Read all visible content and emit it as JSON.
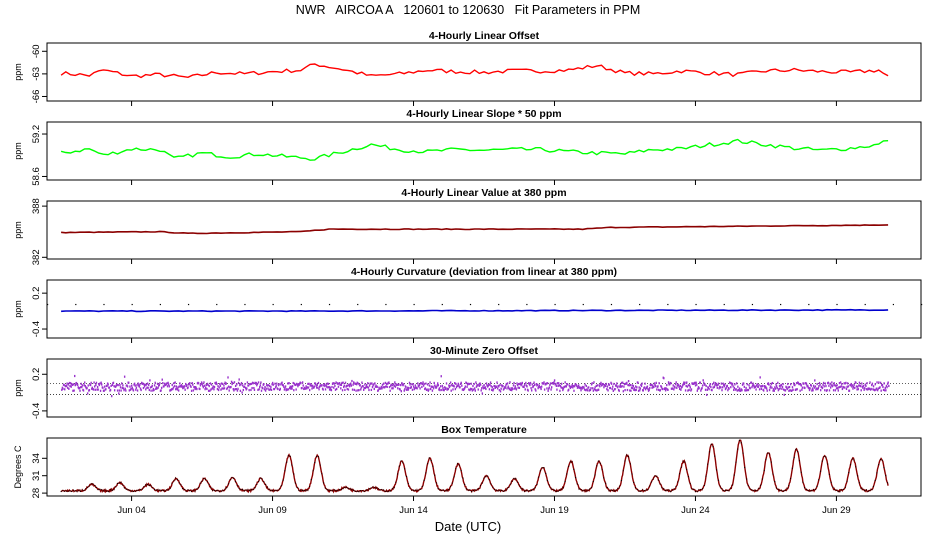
{
  "main_title": "NWR   AIRCOA A   120601 to 120630   Fit Parameters in PPM",
  "xlabel": "Date (UTC)",
  "x_axis": {
    "start": "2012-06-01",
    "end": "2012-07-02",
    "tick_dates": [
      "2012-06-04",
      "2012-06-09",
      "2012-06-14",
      "2012-06-19",
      "2012-06-24",
      "2012-06-29"
    ],
    "tick_labels": [
      "Jun 04",
      "Jun 09",
      "Jun 14",
      "Jun 19",
      "Jun 24",
      "Jun 29"
    ]
  },
  "chart_data": [
    {
      "type": "line",
      "title": "4-Hourly Linear Offset",
      "ylabel": "ppm",
      "ylim": [
        -66.6,
        -58.9
      ],
      "yticks": [
        -60,
        -63,
        -66
      ],
      "ytick_labels": [
        "-60",
        "-63",
        "-66"
      ],
      "color": "#ff0000",
      "series": [
        {
          "x_range": [
            "2012-06-01T12:00",
            "2012-06-30T20:00"
          ],
          "step_hours": 4,
          "anchors": [
            {
              "x": "2012-06-01T12:00",
              "y": -62.9
            },
            {
              "x": "2012-06-02T12:00",
              "y": -63.2
            },
            {
              "x": "2012-06-03T00:00",
              "y": -62.5
            },
            {
              "x": "2012-06-04T00:00",
              "y": -63.3
            },
            {
              "x": "2012-06-05T00:00",
              "y": -63.1
            },
            {
              "x": "2012-06-06T00:00",
              "y": -63.5
            },
            {
              "x": "2012-06-07T00:00",
              "y": -62.8
            },
            {
              "x": "2012-06-08T00:00",
              "y": -63.0
            },
            {
              "x": "2012-06-09T00:00",
              "y": -62.7
            },
            {
              "x": "2012-06-10T00:00",
              "y": -62.5
            },
            {
              "x": "2012-06-10T12:00",
              "y": -61.7
            },
            {
              "x": "2012-06-11T12:00",
              "y": -62.4
            },
            {
              "x": "2012-06-12T12:00",
              "y": -63.3
            },
            {
              "x": "2012-06-13T12:00",
              "y": -63.0
            },
            {
              "x": "2012-06-14T12:00",
              "y": -62.5
            },
            {
              "x": "2012-06-15T12:00",
              "y": -62.7
            },
            {
              "x": "2012-06-16T12:00",
              "y": -62.8
            },
            {
              "x": "2012-06-17T12:00",
              "y": -62.6
            },
            {
              "x": "2012-06-18T12:00",
              "y": -62.6
            },
            {
              "x": "2012-06-19T12:00",
              "y": -62.5
            },
            {
              "x": "2012-06-20T12:00",
              "y": -61.9
            },
            {
              "x": "2012-06-21T12:00",
              "y": -62.9
            },
            {
              "x": "2012-06-22T12:00",
              "y": -63.0
            },
            {
              "x": "2012-06-23T12:00",
              "y": -62.6
            },
            {
              "x": "2012-06-24T12:00",
              "y": -62.9
            },
            {
              "x": "2012-06-25T12:00",
              "y": -63.1
            },
            {
              "x": "2012-06-26T12:00",
              "y": -62.6
            },
            {
              "x": "2012-06-27T12:00",
              "y": -62.5
            },
            {
              "x": "2012-06-28T12:00",
              "y": -62.7
            },
            {
              "x": "2012-06-29T12:00",
              "y": -62.8
            },
            {
              "x": "2012-06-30T12:00",
              "y": -62.5
            },
            {
              "x": "2012-06-30T20:00",
              "y": -63.4
            }
          ]
        }
      ]
    },
    {
      "type": "line",
      "title": "4-Hourly Linear Slope * 50 ppm",
      "ylabel": "ppm",
      "ylim": [
        58.55,
        59.37
      ],
      "yticks": [
        59.2,
        58.6
      ],
      "ytick_labels": [
        "59.2",
        "58.6"
      ],
      "color": "#00ff00",
      "series": [
        {
          "x_range": [
            "2012-06-01T12:00",
            "2012-06-30T20:00"
          ],
          "step_hours": 4,
          "anchors": [
            {
              "x": "2012-06-01T12:00",
              "y": 58.93
            },
            {
              "x": "2012-06-02T12:00",
              "y": 58.99
            },
            {
              "x": "2012-06-03T00:00",
              "y": 58.9
            },
            {
              "x": "2012-06-04T00:00",
              "y": 58.99
            },
            {
              "x": "2012-06-05T00:00",
              "y": 58.98
            },
            {
              "x": "2012-06-05T12:00",
              "y": 58.85
            },
            {
              "x": "2012-06-06T12:00",
              "y": 58.93
            },
            {
              "x": "2012-06-07T12:00",
              "y": 58.88
            },
            {
              "x": "2012-06-08T12:00",
              "y": 58.92
            },
            {
              "x": "2012-06-09T12:00",
              "y": 58.88
            },
            {
              "x": "2012-06-10T12:00",
              "y": 58.85
            },
            {
              "x": "2012-06-11T12:00",
              "y": 58.95
            },
            {
              "x": "2012-06-12T12:00",
              "y": 59.05
            },
            {
              "x": "2012-06-13T12:00",
              "y": 58.98
            },
            {
              "x": "2012-06-14T12:00",
              "y": 58.95
            },
            {
              "x": "2012-06-15T12:00",
              "y": 58.98
            },
            {
              "x": "2012-06-16T12:00",
              "y": 58.97
            },
            {
              "x": "2012-06-17T12:00",
              "y": 58.98
            },
            {
              "x": "2012-06-18T12:00",
              "y": 58.98
            },
            {
              "x": "2012-06-19T12:00",
              "y": 58.95
            },
            {
              "x": "2012-06-20T12:00",
              "y": 58.93
            },
            {
              "x": "2012-06-21T12:00",
              "y": 58.92
            },
            {
              "x": "2012-06-22T12:00",
              "y": 58.98
            },
            {
              "x": "2012-06-23T12:00",
              "y": 58.99
            },
            {
              "x": "2012-06-24T12:00",
              "y": 59.05
            },
            {
              "x": "2012-06-25T12:00",
              "y": 59.1
            },
            {
              "x": "2012-06-26T12:00",
              "y": 59.05
            },
            {
              "x": "2012-06-27T12:00",
              "y": 59.0
            },
            {
              "x": "2012-06-28T12:00",
              "y": 58.97
            },
            {
              "x": "2012-06-29T12:00",
              "y": 59.0
            },
            {
              "x": "2012-06-30T12:00",
              "y": 59.05
            },
            {
              "x": "2012-06-30T20:00",
              "y": 59.12
            }
          ]
        }
      ]
    },
    {
      "type": "line",
      "title": "4-Hourly Linear Value at 380 ppm",
      "ylabel": "ppm",
      "ylim": [
        381.8,
        388.6
      ],
      "yticks": [
        388,
        382
      ],
      "ytick_labels": [
        "388",
        "382"
      ],
      "color": "#8b0000",
      "series": [
        {
          "x_range": [
            "2012-06-01T12:00",
            "2012-06-30T20:00"
          ],
          "step_hours": 4,
          "anchors": [
            {
              "x": "2012-06-01T12:00",
              "y": 384.9
            },
            {
              "x": "2012-06-05T00:00",
              "y": 385.0
            },
            {
              "x": "2012-06-06T00:00",
              "y": 384.8
            },
            {
              "x": "2012-06-10T00:00",
              "y": 385.0
            },
            {
              "x": "2012-06-11T00:00",
              "y": 385.3
            },
            {
              "x": "2012-06-20T00:00",
              "y": 385.3
            },
            {
              "x": "2012-06-21T00:00",
              "y": 385.5
            },
            {
              "x": "2012-06-30T20:00",
              "y": 385.8
            }
          ]
        }
      ]
    },
    {
      "type": "line",
      "title": "4-Hourly Curvature (deviation from linear at 380 ppm)",
      "ylabel": "ppm",
      "ylim": [
        -0.55,
        0.42
      ],
      "yticks": [
        0.2,
        -0.4
      ],
      "ytick_labels": [
        "0.2",
        "-0.4"
      ],
      "color": "#0000cd",
      "series": [
        {
          "x_range": [
            "2012-06-01T12:00",
            "2012-06-30T20:00"
          ],
          "step_hours": 4,
          "anchors": [
            {
              "x": "2012-06-01T12:00",
              "y": -0.1
            },
            {
              "x": "2012-06-10T00:00",
              "y": -0.1
            },
            {
              "x": "2012-06-20T00:00",
              "y": -0.09
            },
            {
              "x": "2012-06-30T20:00",
              "y": -0.08
            }
          ]
        }
      ],
      "reference_points": {
        "y": 0.02,
        "every_days": 1,
        "color": "#000000"
      }
    },
    {
      "type": "scatter",
      "title": "30-Minute Zero Offset",
      "ylabel": "ppm",
      "ylim": [
        -0.5,
        0.45
      ],
      "yticks": [
        0.2,
        -0.4
      ],
      "ytick_labels": [
        "0.2",
        "-0.4"
      ],
      "color": "#9932cc",
      "series": [
        {
          "x_range": [
            "2012-06-01T12:00",
            "2012-06-30T20:00"
          ],
          "step_hours": 0.5,
          "mean": 0.0,
          "spread": 0.07
        }
      ],
      "reference_lines": [
        0.05,
        -0.13
      ]
    },
    {
      "type": "line",
      "title": "Box Temperature",
      "ylabel": "Degrees C",
      "ylim": [
        27.5,
        37.5
      ],
      "yticks": [
        34,
        31,
        28
      ],
      "ytick_labels": [
        "34",
        "31",
        "28"
      ],
      "color": "#8b0000",
      "markers": "#000000",
      "series": [
        {
          "x_range": [
            "2012-06-01T12:00",
            "2012-06-30T20:00"
          ],
          "step_hours": 4,
          "base": 28.4,
          "daily_peaks": [
            {
              "x": "2012-06-02",
              "y": 29.5
            },
            {
              "x": "2012-06-03",
              "y": 29.8
            },
            {
              "x": "2012-06-04",
              "y": 29.5
            },
            {
              "x": "2012-06-05",
              "y": 30.5
            },
            {
              "x": "2012-06-06",
              "y": 30.5
            },
            {
              "x": "2012-06-07",
              "y": 30.7
            },
            {
              "x": "2012-06-08",
              "y": 30.5
            },
            {
              "x": "2012-06-09",
              "y": 34.5
            },
            {
              "x": "2012-06-10",
              "y": 34.5
            },
            {
              "x": "2012-06-11",
              "y": 29.0
            },
            {
              "x": "2012-06-12",
              "y": 29.0
            },
            {
              "x": "2012-06-13",
              "y": 33.5
            },
            {
              "x": "2012-06-14",
              "y": 34.0
            },
            {
              "x": "2012-06-15",
              "y": 33.0
            },
            {
              "x": "2012-06-16",
              "y": 31.0
            },
            {
              "x": "2012-06-17",
              "y": 30.5
            },
            {
              "x": "2012-06-18",
              "y": 32.5
            },
            {
              "x": "2012-06-19",
              "y": 33.5
            },
            {
              "x": "2012-06-20",
              "y": 33.5
            },
            {
              "x": "2012-06-21",
              "y": 34.5
            },
            {
              "x": "2012-06-22",
              "y": 31.0
            },
            {
              "x": "2012-06-23",
              "y": 33.5
            },
            {
              "x": "2012-06-24",
              "y": 36.5
            },
            {
              "x": "2012-06-25",
              "y": 37.2
            },
            {
              "x": "2012-06-26",
              "y": 35.0
            },
            {
              "x": "2012-06-27",
              "y": 35.5
            },
            {
              "x": "2012-06-28",
              "y": 34.5
            },
            {
              "x": "2012-06-29",
              "y": 34.0
            },
            {
              "x": "2012-06-30",
              "y": 34.0
            },
            {
              "x": "2012-07-01",
              "y": 34.5
            }
          ]
        }
      ]
    }
  ]
}
